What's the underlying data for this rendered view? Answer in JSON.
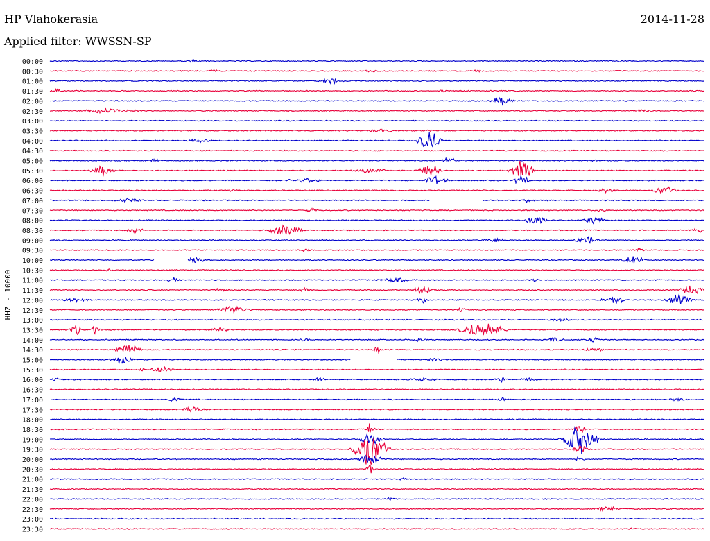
{
  "header": {
    "station": "HP Vlahokerasia",
    "date": "2014-11-28",
    "filter": "Applied filter: WWSSN-SP"
  },
  "chart_data": {
    "type": "line",
    "channel_label": "HHZ - 10000",
    "colors": {
      "even": "#0000cc",
      "odd": "#e8003a"
    },
    "rows": [
      {
        "time": "00:00",
        "color": "blue",
        "events": [
          {
            "t": 0.22,
            "a": 4,
            "d": 0.01
          },
          {
            "t": 0.87,
            "a": 2,
            "d": 0.003
          }
        ],
        "gaps": []
      },
      {
        "time": "00:30",
        "color": "red",
        "events": [
          {
            "t": 0.25,
            "a": 3,
            "d": 0.01
          },
          {
            "t": 0.49,
            "a": 3,
            "d": 0.01
          },
          {
            "t": 0.65,
            "a": 3,
            "d": 0.01
          }
        ],
        "gaps": []
      },
      {
        "time": "01:00",
        "color": "blue",
        "events": [
          {
            "t": 0.43,
            "a": 5,
            "d": 0.02
          }
        ],
        "gaps": []
      },
      {
        "time": "01:30",
        "color": "red",
        "events": [
          {
            "t": 0.01,
            "a": 3,
            "d": 0.01
          },
          {
            "t": 0.6,
            "a": 2,
            "d": 0.01
          }
        ],
        "gaps": []
      },
      {
        "time": "02:00",
        "color": "blue",
        "events": [
          {
            "t": 0.69,
            "a": 8,
            "d": 0.02
          }
        ],
        "gaps": []
      },
      {
        "time": "02:30",
        "color": "red",
        "events": [
          {
            "t": 0.09,
            "a": 4,
            "d": 0.06
          },
          {
            "t": 0.91,
            "a": 3,
            "d": 0.02
          }
        ],
        "gaps": []
      },
      {
        "time": "03:00",
        "color": "blue",
        "events": [],
        "gaps": []
      },
      {
        "time": "03:30",
        "color": "red",
        "events": [
          {
            "t": 0.51,
            "a": 3,
            "d": 0.03
          },
          {
            "t": 0.58,
            "a": 3,
            "d": 0.01
          }
        ],
        "gaps": []
      },
      {
        "time": "04:00",
        "color": "blue",
        "events": [
          {
            "t": 0.58,
            "a": 18,
            "d": 0.02
          },
          {
            "t": 0.23,
            "a": 3,
            "d": 0.03
          }
        ],
        "gaps": []
      },
      {
        "time": "04:30",
        "color": "red",
        "events": [],
        "gaps": []
      },
      {
        "time": "05:00",
        "color": "blue",
        "events": [
          {
            "t": 0.16,
            "a": 4,
            "d": 0.01
          },
          {
            "t": 0.61,
            "a": 6,
            "d": 0.01
          },
          {
            "t": 0.83,
            "a": 3,
            "d": 0.01
          }
        ],
        "gaps": []
      },
      {
        "time": "05:30",
        "color": "red",
        "events": [
          {
            "t": 0.08,
            "a": 10,
            "d": 0.02
          },
          {
            "t": 0.58,
            "a": 12,
            "d": 0.02
          },
          {
            "t": 0.72,
            "a": 16,
            "d": 0.02
          },
          {
            "t": 0.49,
            "a": 4,
            "d": 0.04
          }
        ],
        "gaps": []
      },
      {
        "time": "06:00",
        "color": "blue",
        "events": [
          {
            "t": 0.59,
            "a": 8,
            "d": 0.02
          },
          {
            "t": 0.39,
            "a": 4,
            "d": 0.04
          },
          {
            "t": 0.72,
            "a": 12,
            "d": 0.01
          }
        ],
        "gaps": []
      },
      {
        "time": "06:30",
        "color": "red",
        "events": [
          {
            "t": 0.94,
            "a": 9,
            "d": 0.02
          },
          {
            "t": 0.85,
            "a": 4,
            "d": 0.02
          },
          {
            "t": 0.28,
            "a": 3,
            "d": 0.01
          }
        ],
        "gaps": []
      },
      {
        "time": "07:00",
        "color": "blue",
        "events": [
          {
            "t": 0.73,
            "a": 4,
            "d": 0.01
          },
          {
            "t": 0.12,
            "a": 4,
            "d": 0.03
          }
        ],
        "gaps": [
          [
            0.58,
            0.66
          ]
        ]
      },
      {
        "time": "07:30",
        "color": "red",
        "events": [
          {
            "t": 0.4,
            "a": 4,
            "d": 0.01
          },
          {
            "t": 0.84,
            "a": 3,
            "d": 0.01
          }
        ],
        "gaps": []
      },
      {
        "time": "08:00",
        "color": "blue",
        "events": [
          {
            "t": 0.74,
            "a": 8,
            "d": 0.02
          },
          {
            "t": 0.83,
            "a": 7,
            "d": 0.02
          }
        ],
        "gaps": []
      },
      {
        "time": "08:30",
        "color": "red",
        "events": [
          {
            "t": 0.36,
            "a": 10,
            "d": 0.03
          },
          {
            "t": 0.13,
            "a": 4,
            "d": 0.02
          },
          {
            "t": 0.99,
            "a": 5,
            "d": 0.01
          }
        ],
        "gaps": []
      },
      {
        "time": "09:00",
        "color": "blue",
        "events": [
          {
            "t": 0.82,
            "a": 9,
            "d": 0.02
          },
          {
            "t": 0.68,
            "a": 4,
            "d": 0.02
          }
        ],
        "gaps": []
      },
      {
        "time": "09:30",
        "color": "red",
        "events": [
          {
            "t": 0.39,
            "a": 3,
            "d": 0.01
          },
          {
            "t": 0.9,
            "a": 3,
            "d": 0.01
          }
        ],
        "gaps": []
      },
      {
        "time": "10:00",
        "color": "blue",
        "events": [
          {
            "t": 0.89,
            "a": 8,
            "d": 0.02
          },
          {
            "t": 0.22,
            "a": 6,
            "d": 0.02
          }
        ],
        "gaps": [
          [
            0.16,
            0.21
          ]
        ]
      },
      {
        "time": "10:30",
        "color": "red",
        "events": [
          {
            "t": 0.09,
            "a": 2,
            "d": 0.01
          }
        ],
        "gaps": []
      },
      {
        "time": "11:00",
        "color": "blue",
        "events": [
          {
            "t": 0.19,
            "a": 6,
            "d": 0.01
          },
          {
            "t": 0.53,
            "a": 4,
            "d": 0.04
          },
          {
            "t": 0.74,
            "a": 3,
            "d": 0.01
          }
        ],
        "gaps": []
      },
      {
        "time": "11:30",
        "color": "red",
        "events": [
          {
            "t": 0.57,
            "a": 9,
            "d": 0.02
          },
          {
            "t": 0.98,
            "a": 8,
            "d": 0.02
          },
          {
            "t": 0.39,
            "a": 5,
            "d": 0.01
          },
          {
            "t": 0.26,
            "a": 3,
            "d": 0.02
          }
        ],
        "gaps": []
      },
      {
        "time": "12:00",
        "color": "blue",
        "events": [
          {
            "t": 0.86,
            "a": 8,
            "d": 0.02
          },
          {
            "t": 0.96,
            "a": 12,
            "d": 0.02
          },
          {
            "t": 0.04,
            "a": 4,
            "d": 0.03
          },
          {
            "t": 0.57,
            "a": 6,
            "d": 0.01
          }
        ],
        "gaps": []
      },
      {
        "time": "12:30",
        "color": "red",
        "events": [
          {
            "t": 0.28,
            "a": 8,
            "d": 0.03
          },
          {
            "t": 0.63,
            "a": 5,
            "d": 0.01
          }
        ],
        "gaps": []
      },
      {
        "time": "13:00",
        "color": "blue",
        "events": [
          {
            "t": 0.78,
            "a": 3,
            "d": 0.02
          }
        ],
        "gaps": []
      },
      {
        "time": "13:30",
        "color": "red",
        "events": [
          {
            "t": 0.04,
            "a": 8,
            "d": 0.01
          },
          {
            "t": 0.07,
            "a": 8,
            "d": 0.005
          },
          {
            "t": 0.66,
            "a": 14,
            "d": 0.04
          },
          {
            "t": 0.26,
            "a": 4,
            "d": 0.02
          }
        ],
        "gaps": []
      },
      {
        "time": "14:00",
        "color": "blue",
        "events": [
          {
            "t": 0.83,
            "a": 5,
            "d": 0.01
          },
          {
            "t": 0.77,
            "a": 4,
            "d": 0.02
          },
          {
            "t": 0.39,
            "a": 3,
            "d": 0.01
          },
          {
            "t": 0.56,
            "a": 3,
            "d": 0.02
          }
        ],
        "gaps": []
      },
      {
        "time": "14:30",
        "color": "red",
        "events": [
          {
            "t": 0.12,
            "a": 10,
            "d": 0.02
          },
          {
            "t": 0.83,
            "a": 4,
            "d": 0.02
          },
          {
            "t": 0.5,
            "a": 6,
            "d": 0.005
          }
        ],
        "gaps": []
      },
      {
        "time": "15:00",
        "color": "blue",
        "events": [
          {
            "t": 0.11,
            "a": 8,
            "d": 0.02
          },
          {
            "t": 0.59,
            "a": 3,
            "d": 0.02
          }
        ],
        "gaps": [
          [
            0.46,
            0.53
          ]
        ]
      },
      {
        "time": "15:30",
        "color": "red",
        "events": [
          {
            "t": 0.17,
            "a": 6,
            "d": 0.02
          },
          {
            "t": 0.14,
            "a": 4,
            "d": 0.005
          }
        ],
        "gaps": []
      },
      {
        "time": "16:00",
        "color": "blue",
        "events": [
          {
            "t": 0.41,
            "a": 5,
            "d": 0.01
          },
          {
            "t": 0.57,
            "a": 3,
            "d": 0.03
          },
          {
            "t": 0.69,
            "a": 5,
            "d": 0.01
          },
          {
            "t": 0.01,
            "a": 5,
            "d": 0.005
          },
          {
            "t": 0.73,
            "a": 3,
            "d": 0.02
          }
        ],
        "gaps": []
      },
      {
        "time": "16:30",
        "color": "red",
        "events": [],
        "gaps": []
      },
      {
        "time": "17:00",
        "color": "blue",
        "events": [
          {
            "t": 0.19,
            "a": 6,
            "d": 0.01
          },
          {
            "t": 0.69,
            "a": 6,
            "d": 0.005
          },
          {
            "t": 0.96,
            "a": 3,
            "d": 0.02
          }
        ],
        "gaps": []
      },
      {
        "time": "17:30",
        "color": "red",
        "events": [
          {
            "t": 0.22,
            "a": 5,
            "d": 0.02
          }
        ],
        "gaps": []
      },
      {
        "time": "18:00",
        "color": "blue",
        "events": [],
        "gaps": []
      },
      {
        "time": "18:30",
        "color": "red",
        "events": [
          {
            "t": 0.49,
            "a": 12,
            "d": 0.005
          },
          {
            "t": 0.81,
            "a": 14,
            "d": 0.005
          }
        ],
        "gaps": []
      },
      {
        "time": "19:00",
        "color": "blue",
        "events": [
          {
            "t": 0.81,
            "a": 30,
            "d": 0.03
          },
          {
            "t": 0.49,
            "a": 10,
            "d": 0.02
          }
        ],
        "gaps": []
      },
      {
        "time": "19:30",
        "color": "red",
        "events": [
          {
            "t": 0.49,
            "a": 32,
            "d": 0.03
          },
          {
            "t": 0.81,
            "a": 8,
            "d": 0.01
          }
        ],
        "gaps": []
      },
      {
        "time": "20:00",
        "color": "blue",
        "events": [
          {
            "t": 0.49,
            "a": 10,
            "d": 0.02
          },
          {
            "t": 0.81,
            "a": 6,
            "d": 0.005
          }
        ],
        "gaps": []
      },
      {
        "time": "20:30",
        "color": "red",
        "events": [
          {
            "t": 0.49,
            "a": 10,
            "d": 0.005
          }
        ],
        "gaps": []
      },
      {
        "time": "21:00",
        "color": "blue",
        "events": [
          {
            "t": 0.54,
            "a": 3,
            "d": 0.01
          }
        ],
        "gaps": []
      },
      {
        "time": "21:30",
        "color": "red",
        "events": [],
        "gaps": []
      },
      {
        "time": "22:00",
        "color": "blue",
        "events": [
          {
            "t": 0.52,
            "a": 4,
            "d": 0.005
          }
        ],
        "gaps": []
      },
      {
        "time": "22:30",
        "color": "red",
        "events": [
          {
            "t": 0.85,
            "a": 5,
            "d": 0.02
          }
        ],
        "gaps": []
      },
      {
        "time": "23:00",
        "color": "blue",
        "events": [],
        "gaps": []
      },
      {
        "time": "23:30",
        "color": "red",
        "events": [
          {
            "t": 0.89,
            "a": 3,
            "d": 0.005
          }
        ],
        "gaps": []
      }
    ]
  }
}
